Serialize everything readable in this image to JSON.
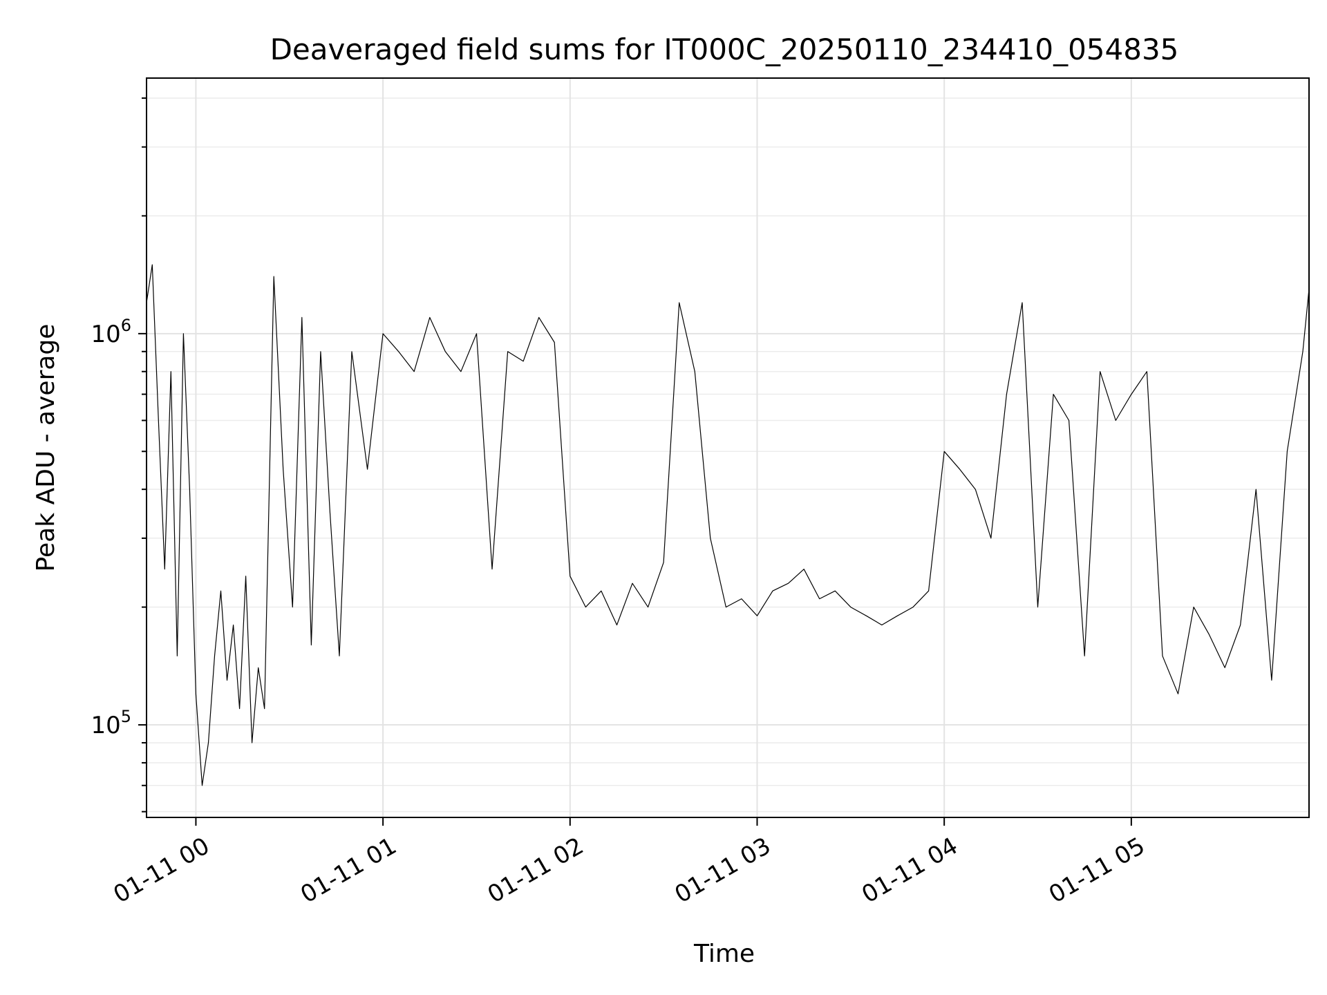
{
  "chart_data": {
    "type": "line",
    "title": "Deaveraged field sums for IT000C_20250110_234410_054835",
    "xlabel": "Time",
    "ylabel": "Peak ADU - average",
    "y_scale": "log",
    "ylim": [
      58000,
      4500000
    ],
    "xlim": [
      "2025-01-10T23:44:10",
      "2025-01-11T05:57:00"
    ],
    "grid": true,
    "line_color": "#000000",
    "x_ticks": [
      {
        "value": "2025-01-11T00:00:00",
        "label": "01-11 00"
      },
      {
        "value": "2025-01-11T01:00:00",
        "label": "01-11 01"
      },
      {
        "value": "2025-01-11T02:00:00",
        "label": "01-11 02"
      },
      {
        "value": "2025-01-11T03:00:00",
        "label": "01-11 03"
      },
      {
        "value": "2025-01-11T04:00:00",
        "label": "01-11 04"
      },
      {
        "value": "2025-01-11T05:00:00",
        "label": "01-11 05"
      }
    ],
    "y_ticks": [
      {
        "value": 100000,
        "base": "10",
        "exp": "5"
      },
      {
        "value": 1000000,
        "base": "10",
        "exp": "6"
      }
    ],
    "series": [
      {
        "x": [
          "2025-01-10T23:44:10",
          "2025-01-10T23:46:00",
          "2025-01-10T23:48:00",
          "2025-01-10T23:50:00",
          "2025-01-10T23:52:00",
          "2025-01-10T23:54:00",
          "2025-01-10T23:56:00",
          "2025-01-10T23:58:00",
          "2025-01-11T00:00:00",
          "2025-01-11T00:02:00",
          "2025-01-11T00:04:00",
          "2025-01-11T00:06:00",
          "2025-01-11T00:08:00",
          "2025-01-11T00:10:00",
          "2025-01-11T00:12:00",
          "2025-01-11T00:14:00",
          "2025-01-11T00:16:00",
          "2025-01-11T00:18:00",
          "2025-01-11T00:20:00",
          "2025-01-11T00:22:00",
          "2025-01-11T00:25:00",
          "2025-01-11T00:28:00",
          "2025-01-11T00:31:00",
          "2025-01-11T00:34:00",
          "2025-01-11T00:37:00",
          "2025-01-11T00:40:00",
          "2025-01-11T00:43:00",
          "2025-01-11T00:46:00",
          "2025-01-11T00:50:00",
          "2025-01-11T00:55:00",
          "2025-01-11T01:00:00",
          "2025-01-11T01:05:00",
          "2025-01-11T01:10:00",
          "2025-01-11T01:15:00",
          "2025-01-11T01:20:00",
          "2025-01-11T01:25:00",
          "2025-01-11T01:30:00",
          "2025-01-11T01:35:00",
          "2025-01-11T01:40:00",
          "2025-01-11T01:45:00",
          "2025-01-11T01:50:00",
          "2025-01-11T01:55:00",
          "2025-01-11T02:00:00",
          "2025-01-11T02:05:00",
          "2025-01-11T02:10:00",
          "2025-01-11T02:15:00",
          "2025-01-11T02:20:00",
          "2025-01-11T02:25:00",
          "2025-01-11T02:30:00",
          "2025-01-11T02:35:00",
          "2025-01-11T02:40:00",
          "2025-01-11T02:45:00",
          "2025-01-11T02:50:00",
          "2025-01-11T02:55:00",
          "2025-01-11T03:00:00",
          "2025-01-11T03:05:00",
          "2025-01-11T03:10:00",
          "2025-01-11T03:15:00",
          "2025-01-11T03:20:00",
          "2025-01-11T03:25:00",
          "2025-01-11T03:30:00",
          "2025-01-11T03:35:00",
          "2025-01-11T03:40:00",
          "2025-01-11T03:45:00",
          "2025-01-11T03:50:00",
          "2025-01-11T03:55:00",
          "2025-01-11T04:00:00",
          "2025-01-11T04:05:00",
          "2025-01-11T04:10:00",
          "2025-01-11T04:15:00",
          "2025-01-11T04:20:00",
          "2025-01-11T04:25:00",
          "2025-01-11T04:30:00",
          "2025-01-11T04:35:00",
          "2025-01-11T04:40:00",
          "2025-01-11T04:45:00",
          "2025-01-11T04:50:00",
          "2025-01-11T04:55:00",
          "2025-01-11T05:00:00",
          "2025-01-11T05:05:00",
          "2025-01-11T05:10:00",
          "2025-01-11T05:15:00",
          "2025-01-11T05:20:00",
          "2025-01-11T05:25:00",
          "2025-01-11T05:30:00",
          "2025-01-11T05:35:00",
          "2025-01-11T05:40:00",
          "2025-01-11T05:45:00",
          "2025-01-11T05:50:00",
          "2025-01-11T05:55:00",
          "2025-01-11T05:57:00"
        ],
        "y": [
          1200000,
          1500000,
          600000,
          250000,
          800000,
          150000,
          1000000,
          400000,
          120000,
          70000,
          90000,
          150000,
          220000,
          130000,
          180000,
          110000,
          240000,
          90000,
          140000,
          110000,
          1400000,
          450000,
          200000,
          1100000,
          160000,
          900000,
          350000,
          150000,
          900000,
          450000,
          1000000,
          900000,
          800000,
          1100000,
          900000,
          800000,
          1000000,
          250000,
          900000,
          850000,
          1100000,
          950000,
          240000,
          200000,
          220000,
          180000,
          230000,
          200000,
          260000,
          1200000,
          800000,
          300000,
          200000,
          210000,
          190000,
          220000,
          230000,
          250000,
          210000,
          220000,
          200000,
          190000,
          180000,
          190000,
          200000,
          220000,
          500000,
          450000,
          400000,
          300000,
          700000,
          1200000,
          200000,
          700000,
          600000,
          150000,
          800000,
          600000,
          700000,
          800000,
          150000,
          120000,
          200000,
          170000,
          140000,
          180000,
          400000,
          130000,
          500000,
          900000,
          1300000
        ]
      }
    ]
  }
}
